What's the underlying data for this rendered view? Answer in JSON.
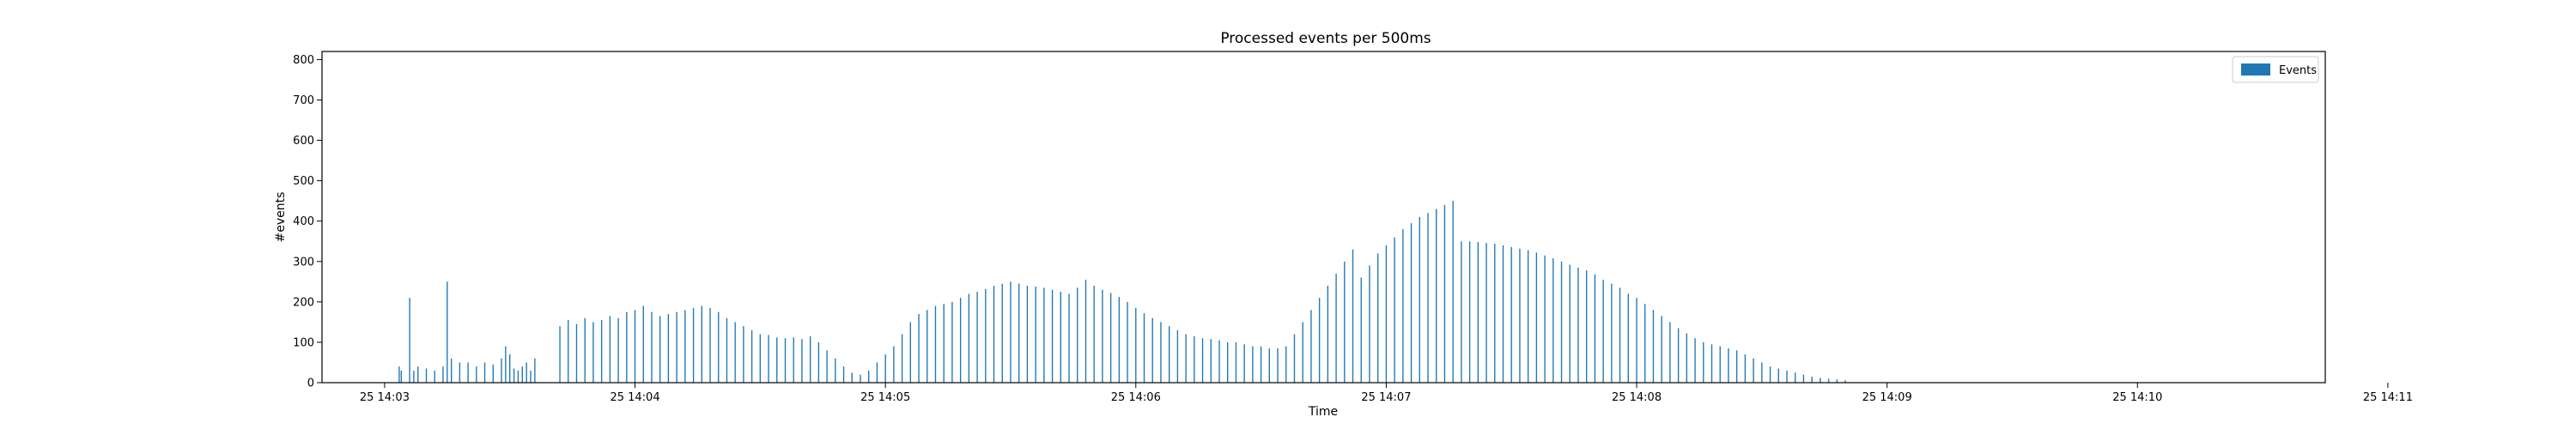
{
  "chart_data": {
    "type": "bar",
    "title": "Processed events per 500ms",
    "xlabel": "Time",
    "ylabel": "#events",
    "xticks": [
      "25 14:03",
      "25 14:04",
      "25 14:05",
      "25 14:06",
      "25 14:07",
      "25 14:08",
      "25 14:09",
      "25 14:10",
      "25 14:11"
    ],
    "xlim_seconds": [
      -15,
      465
    ],
    "ylim": [
      0,
      820
    ],
    "yticks": [
      0,
      100,
      200,
      300,
      400,
      500,
      600,
      700,
      800
    ],
    "grid": false,
    "legend_position": "top-right",
    "bar_interval_seconds": 0.5,
    "bar_width_seconds": 0.28,
    "color": "#1f77b4",
    "series": [
      {
        "name": "Events",
        "points": [
          [
            7,
            40
          ],
          [
            8,
            30
          ],
          [
            12,
            210
          ],
          [
            14,
            30
          ],
          [
            16,
            40
          ],
          [
            20,
            35
          ],
          [
            24,
            30
          ],
          [
            28,
            40
          ],
          [
            30,
            250
          ],
          [
            32,
            60
          ],
          [
            36,
            50
          ],
          [
            40,
            50
          ],
          [
            44,
            40
          ],
          [
            48,
            50
          ],
          [
            52,
            45
          ],
          [
            56,
            60
          ],
          [
            58,
            90
          ],
          [
            60,
            70
          ],
          [
            62,
            35
          ],
          [
            64,
            30
          ],
          [
            66,
            40
          ],
          [
            68,
            50
          ],
          [
            70,
            30
          ],
          [
            72,
            60
          ],
          [
            84,
            140
          ],
          [
            88,
            155
          ],
          [
            92,
            145
          ],
          [
            96,
            160
          ],
          [
            100,
            150
          ],
          [
            104,
            155
          ],
          [
            108,
            165
          ],
          [
            112,
            160
          ],
          [
            116,
            175
          ],
          [
            120,
            180
          ],
          [
            124,
            190
          ],
          [
            128,
            175
          ],
          [
            132,
            165
          ],
          [
            136,
            170
          ],
          [
            140,
            175
          ],
          [
            144,
            180
          ],
          [
            148,
            185
          ],
          [
            152,
            190
          ],
          [
            156,
            185
          ],
          [
            160,
            175
          ],
          [
            164,
            160
          ],
          [
            168,
            150
          ],
          [
            172,
            140
          ],
          [
            176,
            130
          ],
          [
            180,
            120
          ],
          [
            184,
            118
          ],
          [
            188,
            112
          ],
          [
            192,
            110
          ],
          [
            196,
            112
          ],
          [
            200,
            108
          ],
          [
            204,
            115
          ],
          [
            208,
            100
          ],
          [
            212,
            80
          ],
          [
            216,
            60
          ],
          [
            220,
            40
          ],
          [
            224,
            25
          ],
          [
            228,
            20
          ],
          [
            232,
            30
          ],
          [
            236,
            50
          ],
          [
            240,
            70
          ],
          [
            244,
            90
          ],
          [
            248,
            120
          ],
          [
            252,
            150
          ],
          [
            256,
            170
          ],
          [
            260,
            180
          ],
          [
            264,
            190
          ],
          [
            268,
            195
          ],
          [
            272,
            200
          ],
          [
            276,
            210
          ],
          [
            280,
            220
          ],
          [
            284,
            225
          ],
          [
            288,
            232
          ],
          [
            292,
            240
          ],
          [
            296,
            245
          ],
          [
            300,
            250
          ],
          [
            304,
            245
          ],
          [
            308,
            240
          ],
          [
            312,
            238
          ],
          [
            316,
            235
          ],
          [
            320,
            230
          ],
          [
            324,
            225
          ],
          [
            328,
            220
          ],
          [
            332,
            235
          ],
          [
            336,
            255
          ],
          [
            340,
            240
          ],
          [
            344,
            230
          ],
          [
            348,
            222
          ],
          [
            352,
            212
          ],
          [
            356,
            200
          ],
          [
            360,
            185
          ],
          [
            364,
            172
          ],
          [
            368,
            160
          ],
          [
            372,
            150
          ],
          [
            376,
            140
          ],
          [
            380,
            130
          ],
          [
            384,
            120
          ],
          [
            388,
            115
          ],
          [
            392,
            110
          ],
          [
            396,
            108
          ],
          [
            400,
            105
          ],
          [
            404,
            100
          ],
          [
            408,
            100
          ],
          [
            412,
            95
          ],
          [
            416,
            90
          ],
          [
            420,
            90
          ],
          [
            424,
            85
          ],
          [
            428,
            85
          ],
          [
            432,
            90
          ],
          [
            436,
            120
          ],
          [
            440,
            150
          ],
          [
            444,
            180
          ],
          [
            448,
            210
          ],
          [
            452,
            240
          ],
          [
            456,
            270
          ],
          [
            460,
            300
          ],
          [
            464,
            330
          ],
          [
            468,
            260
          ],
          [
            472,
            290
          ],
          [
            476,
            320
          ],
          [
            480,
            340
          ],
          [
            484,
            360
          ],
          [
            488,
            380
          ],
          [
            492,
            395
          ],
          [
            496,
            410
          ],
          [
            500,
            420
          ],
          [
            504,
            430
          ],
          [
            508,
            440
          ],
          [
            512,
            450
          ],
          [
            516,
            350
          ],
          [
            520,
            350
          ],
          [
            524,
            348
          ],
          [
            528,
            346
          ],
          [
            532,
            344
          ],
          [
            536,
            340
          ],
          [
            540,
            336
          ],
          [
            544,
            332
          ],
          [
            548,
            328
          ],
          [
            552,
            322
          ],
          [
            556,
            315
          ],
          [
            560,
            308
          ],
          [
            564,
            300
          ],
          [
            568,
            292
          ],
          [
            572,
            285
          ],
          [
            576,
            278
          ],
          [
            580,
            268
          ],
          [
            584,
            255
          ],
          [
            588,
            245
          ],
          [
            592,
            235
          ],
          [
            596,
            220
          ],
          [
            600,
            210
          ],
          [
            604,
            195
          ],
          [
            608,
            180
          ],
          [
            612,
            165
          ],
          [
            616,
            150
          ],
          [
            620,
            135
          ],
          [
            624,
            122
          ],
          [
            628,
            110
          ],
          [
            632,
            100
          ],
          [
            636,
            95
          ],
          [
            640,
            90
          ],
          [
            644,
            85
          ],
          [
            648,
            80
          ],
          [
            652,
            70
          ],
          [
            656,
            60
          ],
          [
            660,
            50
          ],
          [
            664,
            40
          ],
          [
            668,
            35
          ],
          [
            672,
            30
          ],
          [
            676,
            25
          ],
          [
            680,
            20
          ],
          [
            684,
            15
          ],
          [
            688,
            12
          ],
          [
            692,
            10
          ],
          [
            696,
            8
          ],
          [
            700,
            6
          ]
        ]
      }
    ]
  }
}
